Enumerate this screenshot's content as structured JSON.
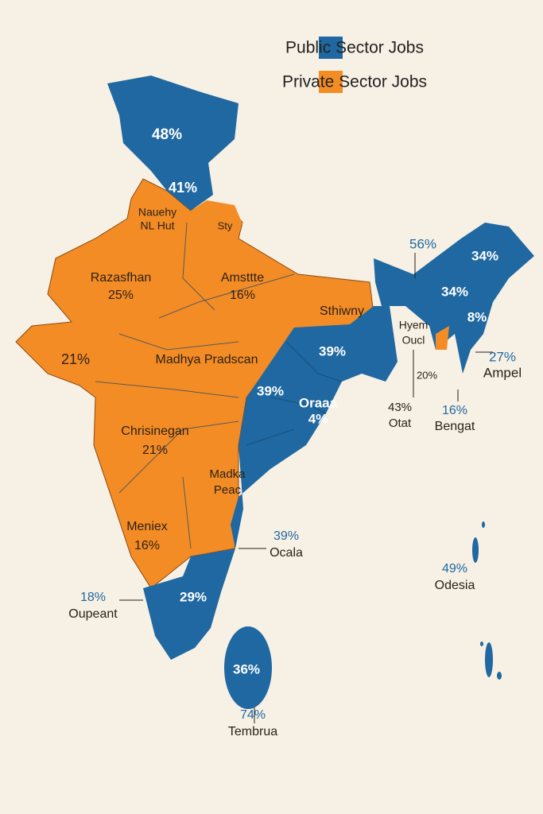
{
  "legend": [
    {
      "label": "Public Sector Jobs",
      "color": "#1f68a1"
    },
    {
      "label": "Private Sector Jobs",
      "color": "#f48c25"
    }
  ],
  "labels": [
    {
      "lines": [
        "48%"
      ]
    },
    {
      "lines": [
        "41%"
      ]
    },
    {
      "lines": [
        "Nauehy",
        "NL Hut"
      ]
    },
    {
      "lines": [
        "Sty"
      ]
    },
    {
      "lines": [
        "Razasfhan",
        "25%"
      ]
    },
    {
      "lines": [
        "Amsttte",
        "16%"
      ]
    },
    {
      "lines": [
        "Sthiwny"
      ]
    },
    {
      "lines": [
        "56%"
      ]
    },
    {
      "lines": [
        "34%"
      ]
    },
    {
      "lines": [
        "34%"
      ]
    },
    {
      "lines": [
        "8%"
      ]
    },
    {
      "lines": [
        "Hyem",
        "Oucl"
      ]
    },
    {
      "lines": [
        "27%",
        "Ampel"
      ]
    },
    {
      "lines": [
        "21%"
      ]
    },
    {
      "lines": [
        "Madhya Pradscan"
      ]
    },
    {
      "lines": [
        "39%"
      ]
    },
    {
      "lines": [
        "39%"
      ]
    },
    {
      "lines": [
        "Oraaa",
        "4%"
      ]
    },
    {
      "lines": [
        "43%",
        "Otat"
      ]
    },
    {
      "lines": [
        "16%",
        "Bengat"
      ]
    },
    {
      "lines": [
        "20%"
      ]
    },
    {
      "lines": [
        "Chrisinegan",
        "21%"
      ]
    },
    {
      "lines": [
        "Madka",
        "Peac"
      ]
    },
    {
      "lines": [
        "Meniex",
        "16%"
      ]
    },
    {
      "lines": [
        "39%",
        "Ocala"
      ]
    },
    {
      "lines": [
        "49%",
        "Odesia"
      ]
    },
    {
      "lines": [
        "18%",
        "Oupeant"
      ]
    },
    {
      "lines": [
        "29%"
      ]
    },
    {
      "lines": [
        "36%"
      ]
    },
    {
      "lines": [
        "74%",
        "Tembrua"
      ]
    }
  ]
}
